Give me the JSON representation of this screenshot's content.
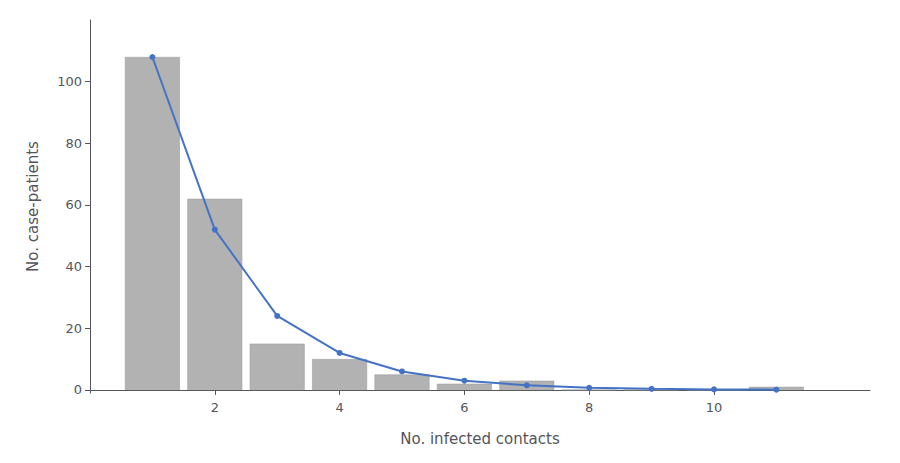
{
  "chart_data": {
    "type": "bar",
    "xlabel": "No. infected contacts",
    "ylabel": "No. case-patients",
    "x": [
      1,
      2,
      3,
      4,
      5,
      6,
      7,
      8,
      9,
      10,
      11
    ],
    "series": [
      {
        "type": "bar",
        "color": "#b2b2b2",
        "values": [
          108,
          62,
          15,
          10,
          5,
          2,
          3,
          0,
          0,
          0,
          1
        ]
      },
      {
        "type": "line",
        "color": "#4472c4",
        "marker": "circle",
        "values": [
          108,
          52,
          24,
          12,
          6,
          3,
          1.5,
          0.7,
          0.35,
          0.17,
          0.08
        ]
      }
    ],
    "xlim": [
      0,
      12.5
    ],
    "ylim": [
      -1,
      120
    ],
    "xticks": [
      2,
      4,
      6,
      8,
      10
    ],
    "yticks": [
      0,
      20,
      40,
      60,
      80,
      100
    ],
    "grid": false
  }
}
